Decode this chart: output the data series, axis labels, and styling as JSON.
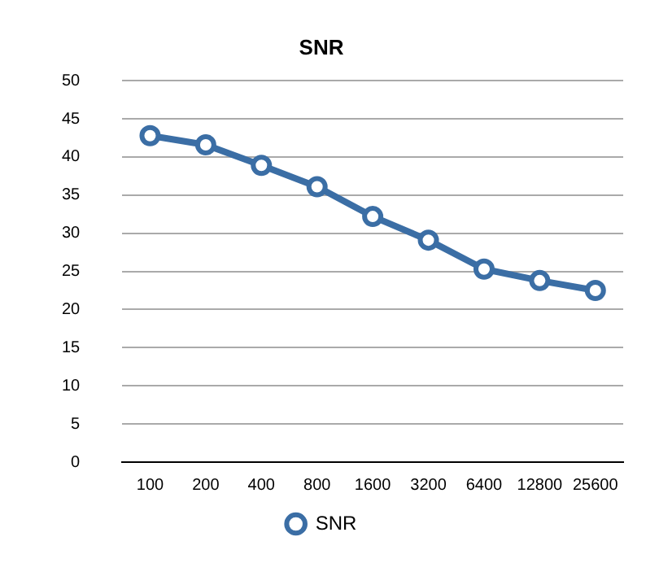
{
  "chart_data": {
    "type": "line",
    "title": "SNR",
    "categories": [
      "100",
      "200",
      "400",
      "800",
      "1600",
      "3200",
      "6400",
      "12800",
      "25600"
    ],
    "series": [
      {
        "name": "SNR",
        "color": "#3b6ea5",
        "values": [
          42.8,
          41.6,
          38.9,
          36.1,
          32.2,
          29.1,
          25.3,
          23.8,
          22.5
        ]
      }
    ],
    "ylim": [
      0,
      50
    ],
    "yticks": [
      0,
      5,
      10,
      15,
      20,
      25,
      30,
      35,
      40,
      45,
      50
    ],
    "grid": "y",
    "legend": "bottom",
    "marker": "circle",
    "line_style": "solid"
  }
}
